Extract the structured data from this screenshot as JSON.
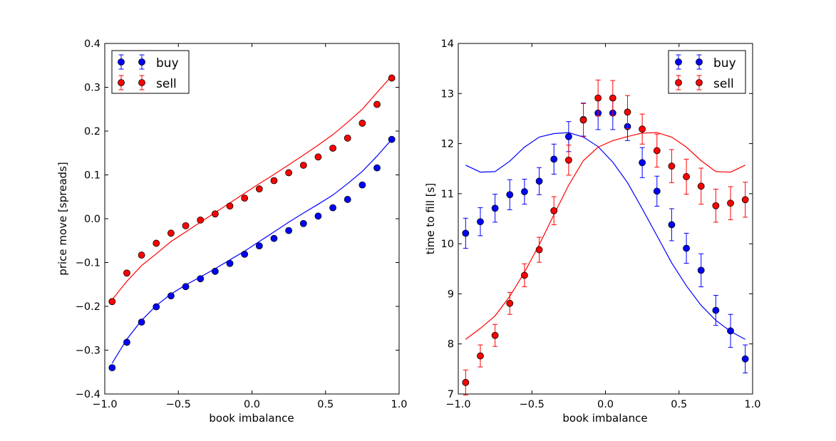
{
  "chart_data": [
    {
      "type": "scatter",
      "title": "",
      "xlabel": "book imbalance",
      "ylabel": "price move [spreads]",
      "xlim": [
        -1.0,
        1.0
      ],
      "ylim": [
        -0.4,
        0.4
      ],
      "xticks": [
        -1.0,
        -0.5,
        0.0,
        0.5,
        1.0
      ],
      "xtick_labels": [
        "−1.0",
        "−0.5",
        "0.0",
        "0.5",
        "1.0"
      ],
      "yticks": [
        -0.4,
        -0.3,
        -0.2,
        -0.1,
        0.0,
        0.1,
        0.2,
        0.3,
        0.4
      ],
      "ytick_labels": [
        "−0.4",
        "−0.3",
        "−0.2",
        "−0.1",
        "0.0",
        "0.1",
        "0.2",
        "0.3",
        "0.4"
      ],
      "legend_position": "top-left",
      "x": [
        -0.95,
        -0.85,
        -0.75,
        -0.65,
        -0.55,
        -0.45,
        -0.35,
        -0.25,
        -0.15,
        -0.05,
        0.05,
        0.15,
        0.25,
        0.35,
        0.45,
        0.55,
        0.65,
        0.75,
        0.85,
        0.95
      ],
      "series": [
        {
          "name": "buy",
          "color": "#0000ff",
          "points": [
            -0.34,
            -0.282,
            -0.236,
            -0.201,
            -0.176,
            -0.155,
            -0.137,
            -0.12,
            -0.102,
            -0.081,
            -0.062,
            -0.045,
            -0.027,
            -0.011,
            0.006,
            0.025,
            0.044,
            0.077,
            0.116,
            0.181
          ],
          "errors": [
            0,
            0,
            0,
            0,
            0,
            0,
            0,
            0,
            0,
            0,
            0,
            0,
            0,
            0,
            0,
            0,
            0,
            0,
            0,
            0
          ],
          "line": [
            -0.33,
            -0.275,
            -0.232,
            -0.198,
            -0.172,
            -0.151,
            -0.133,
            -0.114,
            -0.094,
            -0.074,
            -0.052,
            -0.03,
            -0.008,
            0.013,
            0.033,
            0.054,
            0.08,
            0.108,
            0.143,
            0.181
          ]
        },
        {
          "name": "sell",
          "color": "#ff0000",
          "points": [
            -0.189,
            -0.124,
            -0.083,
            -0.056,
            -0.033,
            -0.016,
            -0.003,
            0.011,
            0.029,
            0.047,
            0.068,
            0.087,
            0.105,
            0.122,
            0.141,
            0.161,
            0.184,
            0.218,
            0.261,
            0.321
          ],
          "errors": [
            0,
            0,
            0,
            0,
            0,
            0,
            0,
            0,
            0,
            0,
            0,
            0,
            0,
            0,
            0,
            0,
            0,
            0,
            0,
            0
          ],
          "line": [
            -0.185,
            -0.143,
            -0.107,
            -0.08,
            -0.052,
            -0.03,
            -0.008,
            0.014,
            0.036,
            0.058,
            0.08,
            0.101,
            0.123,
            0.145,
            0.168,
            0.192,
            0.22,
            0.25,
            0.288,
            0.326
          ]
        }
      ]
    },
    {
      "type": "scatter",
      "title": "",
      "xlabel": "book imbalance",
      "ylabel": "time to fill [s]",
      "xlim": [
        -1.0,
        1.0
      ],
      "ylim": [
        7,
        14
      ],
      "xticks": [
        -1.0,
        -0.5,
        0.0,
        0.5,
        1.0
      ],
      "xtick_labels": [
        "−1.0",
        "−0.5",
        "0.0",
        "0.5",
        "1.0"
      ],
      "yticks": [
        7,
        8,
        9,
        10,
        11,
        12,
        13,
        14
      ],
      "ytick_labels": [
        "7",
        "8",
        "9",
        "10",
        "11",
        "12",
        "13",
        "14"
      ],
      "legend_position": "top-right",
      "x": [
        -0.95,
        -0.85,
        -0.75,
        -0.65,
        -0.55,
        -0.45,
        -0.35,
        -0.25,
        -0.15,
        -0.05,
        0.05,
        0.15,
        0.25,
        0.35,
        0.45,
        0.55,
        0.65,
        0.75,
        0.85,
        0.95
      ],
      "series": [
        {
          "name": "buy",
          "color": "#0000ff",
          "points": [
            10.21,
            10.44,
            10.71,
            10.98,
            11.04,
            11.25,
            11.69,
            12.14,
            12.48,
            12.61,
            12.61,
            12.34,
            11.62,
            11.05,
            10.38,
            9.91,
            9.47,
            8.67,
            8.26,
            7.7
          ],
          "errors": [
            0.3,
            0.28,
            0.28,
            0.3,
            0.25,
            0.27,
            0.3,
            0.3,
            0.33,
            0.33,
            0.33,
            0.28,
            0.3,
            0.3,
            0.32,
            0.3,
            0.33,
            0.3,
            0.33,
            0.28
          ],
          "line": [
            11.57,
            11.43,
            11.44,
            11.65,
            11.93,
            12.13,
            12.2,
            12.22,
            12.13,
            11.94,
            11.63,
            11.22,
            10.7,
            10.16,
            9.62,
            9.16,
            8.77,
            8.47,
            8.25,
            8.09
          ]
        },
        {
          "name": "sell",
          "color": "#ff0000",
          "points": [
            7.23,
            7.76,
            8.17,
            8.81,
            9.37,
            9.88,
            10.66,
            11.67,
            12.47,
            12.91,
            12.91,
            12.63,
            12.29,
            11.86,
            11.55,
            11.34,
            11.15,
            10.76,
            10.81,
            10.88
          ],
          "errors": [
            0.25,
            0.22,
            0.22,
            0.22,
            0.23,
            0.25,
            0.28,
            0.3,
            0.33,
            0.36,
            0.35,
            0.33,
            0.3,
            0.33,
            0.33,
            0.35,
            0.36,
            0.33,
            0.33,
            0.35
          ],
          "line": [
            8.09,
            8.31,
            8.56,
            8.95,
            9.43,
            9.98,
            10.58,
            11.17,
            11.66,
            11.93,
            12.06,
            12.14,
            12.21,
            12.22,
            12.13,
            11.93,
            11.66,
            11.44,
            11.43,
            11.57
          ]
        }
      ]
    }
  ]
}
